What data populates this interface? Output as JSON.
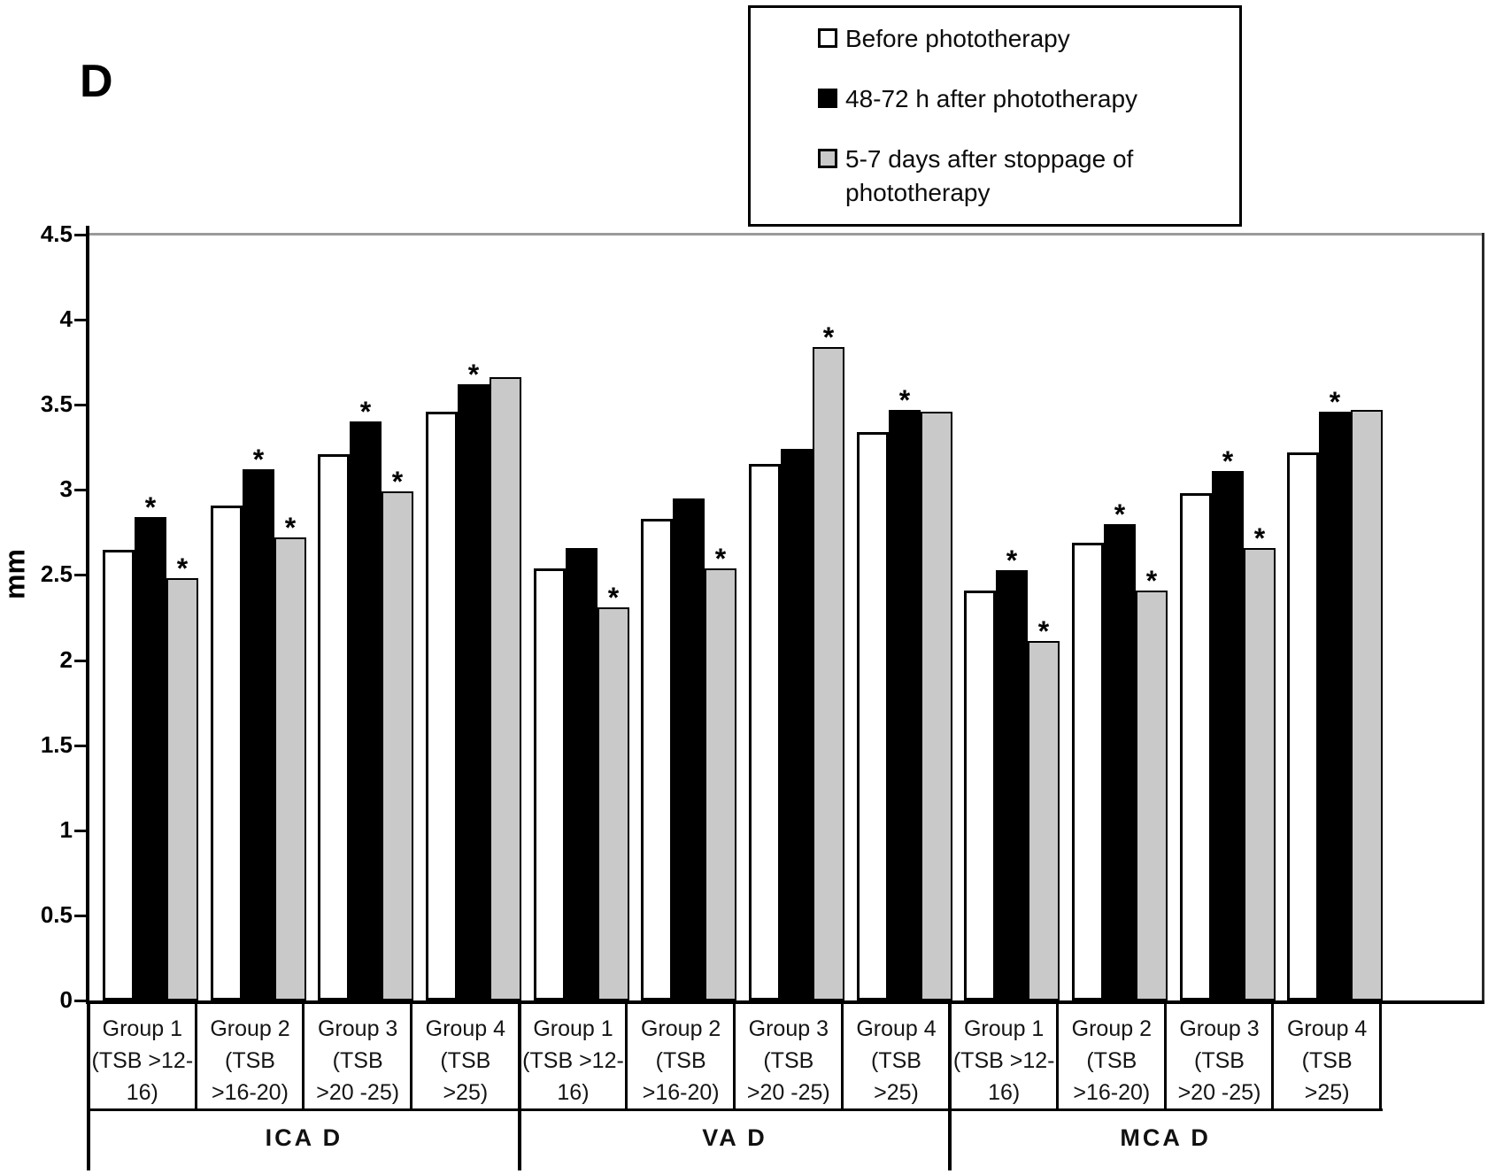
{
  "chart_data": {
    "type": "bar",
    "panel_label": "D",
    "ylabel": "mm",
    "ylim": [
      0,
      4.5
    ],
    "ytick_labels": [
      "0",
      "0.5",
      "1",
      "1.5",
      "2",
      "2.5",
      "3",
      "3.5",
      "4",
      "4.5"
    ],
    "grid": "single horizontal gridline at 4.5",
    "legend_position": "top-right",
    "significance_marker": "*",
    "legend": [
      {
        "label": "Before phototherapy",
        "color": "#ffffff"
      },
      {
        "label": "48-72 h after phototherapy",
        "color": "#000000"
      },
      {
        "label": "5-7 days after stoppage of phototherapy",
        "color": "#c9c9c9"
      }
    ],
    "sections": [
      {
        "label": "ICA D",
        "groups": [
          {
            "label": "Group 1 (TSB >12-16)",
            "label_lines": [
              "Group 1",
              "(TSB >12-",
              "16)"
            ],
            "values": [
              2.65,
              2.84,
              2.48
            ],
            "significant": [
              false,
              true,
              true
            ]
          },
          {
            "label": "Group 2 (TSB >16-20)",
            "label_lines": [
              "Group 2",
              "(TSB",
              ">16-20)"
            ],
            "values": [
              2.91,
              3.12,
              2.72
            ],
            "significant": [
              false,
              true,
              true
            ]
          },
          {
            "label": "Group 3 (TSB >20 -25)",
            "label_lines": [
              "Group 3",
              "(TSB",
              ">20 -25)"
            ],
            "values": [
              3.21,
              3.4,
              2.99
            ],
            "significant": [
              false,
              true,
              true
            ]
          },
          {
            "label": "Group 4 (TSB >25)",
            "label_lines": [
              "Group 4",
              "(TSB",
              ">25)"
            ],
            "values": [
              3.46,
              3.62,
              3.66
            ],
            "significant": [
              false,
              true,
              false
            ]
          }
        ]
      },
      {
        "label": "VA D",
        "groups": [
          {
            "label": "Group 1 (TSB >12-16)",
            "label_lines": [
              "Group 1",
              "(TSB >12-",
              "16)"
            ],
            "values": [
              2.54,
              2.66,
              2.31
            ],
            "significant": [
              false,
              false,
              true
            ]
          },
          {
            "label": "Group 2 (TSB >16-20)",
            "label_lines": [
              "Group 2",
              "(TSB",
              ">16-20)"
            ],
            "values": [
              2.83,
              2.95,
              2.54
            ],
            "significant": [
              false,
              false,
              true
            ]
          },
          {
            "label": "Group 3 (TSB >20 -25)",
            "label_lines": [
              "Group 3",
              "(TSB",
              ">20 -25)"
            ],
            "values": [
              3.15,
              3.24,
              3.84
            ],
            "significant": [
              false,
              false,
              true
            ]
          },
          {
            "label": "Group 4 (TSB >25)",
            "label_lines": [
              "Group 4",
              "(TSB",
              ">25)"
            ],
            "values": [
              3.34,
              3.47,
              3.46
            ],
            "significant": [
              false,
              true,
              false
            ]
          }
        ]
      },
      {
        "label": "MCA D",
        "groups": [
          {
            "label": "Group 1 (TSB >12-16)",
            "label_lines": [
              "Group 1",
              "(TSB >12-",
              "16)"
            ],
            "values": [
              2.41,
              2.53,
              2.11
            ],
            "significant": [
              false,
              true,
              true
            ]
          },
          {
            "label": "Group 2 (TSB >16-20)",
            "label_lines": [
              "Group 2",
              "(TSB",
              ">16-20)"
            ],
            "values": [
              2.69,
              2.8,
              2.41
            ],
            "significant": [
              false,
              true,
              true
            ]
          },
          {
            "label": "Group 3 (TSB >20 -25)",
            "label_lines": [
              "Group 3",
              "(TSB",
              ">20 -25)"
            ],
            "values": [
              2.98,
              3.11,
              2.66
            ],
            "significant": [
              false,
              true,
              true
            ]
          },
          {
            "label": "Group 4 (TSB >25)",
            "label_lines": [
              "Group 4",
              "(TSB",
              ">25)"
            ],
            "values": [
              3.22,
              3.46,
              3.47
            ],
            "significant": [
              false,
              true,
              false
            ]
          }
        ]
      }
    ]
  }
}
